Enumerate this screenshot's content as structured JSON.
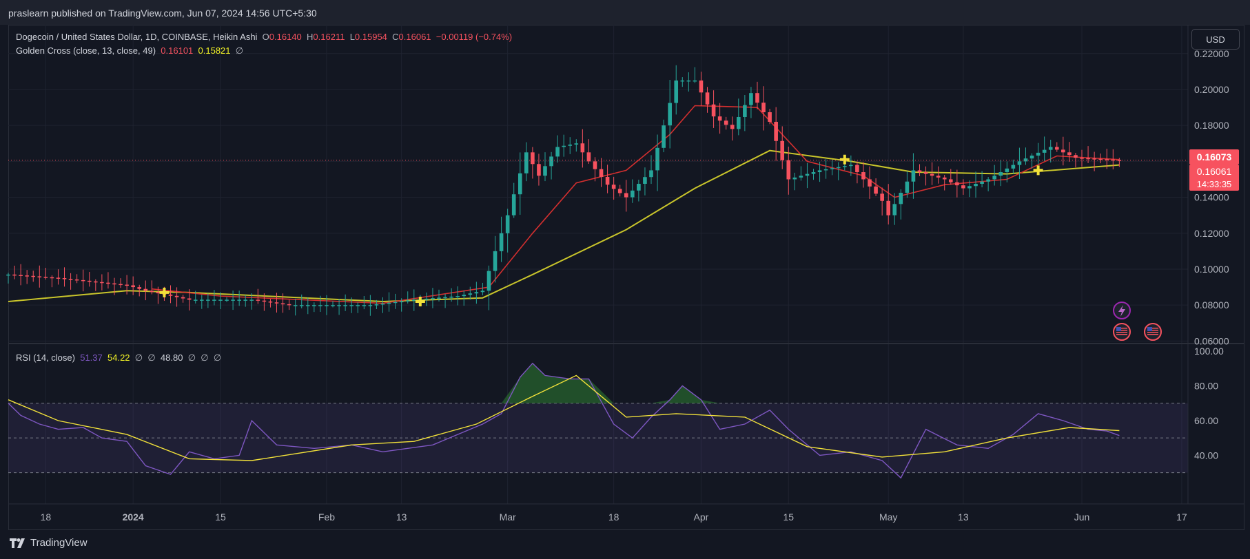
{
  "header": {
    "published": "praslearn published on TradingView.com, Jun 07, 2024 14:56 UTC+5:30"
  },
  "legend": {
    "title": "Dogecoin / United States Dollar, 1D, COINBASE, Heikin Ashi",
    "o_label": "O",
    "o": "0.16140",
    "h_label": "H",
    "h": "0.16211",
    "l_label": "L",
    "l": "0.15954",
    "c_label": "C",
    "c": "0.16061",
    "change": "−0.00119 (−0.74%)",
    "indicator": "Golden Cross (close, 13, close, 49)",
    "ind_v1": "0.16101",
    "ind_v2": "0.15821",
    "null_sym": "∅"
  },
  "rsi_legend": {
    "label": "RSI (14, close)",
    "v1": "51.37",
    "v2": "54.22",
    "v3": "48.80",
    "null_sym": "∅"
  },
  "currency_button": "USD",
  "price_badges": {
    "upper": "0.16073",
    "lower": "0.16061",
    "timer": "14:33:35"
  },
  "footer": {
    "brand": "TradingView"
  },
  "colors": {
    "up": "#26a69a",
    "down": "#f7525f",
    "ma_fast": "#d32f2f",
    "ma_slow": "#c9c52b",
    "rsi": "#7e57c2",
    "rsi_ma": "#f2e13a",
    "bg": "#131722"
  },
  "chart_data": [
    {
      "type": "candlestick",
      "title": "Dogecoin / United States Dollar, 1D, COINBASE, Heikin Ashi",
      "y_ticks": [
        "0.06000",
        "0.08000",
        "0.10000",
        "0.12000",
        "0.14000",
        "0.16000",
        "0.18000",
        "0.20000",
        "0.22000"
      ],
      "ylim": [
        0.059,
        0.236
      ],
      "x_ticks": [
        "18",
        "2024",
        "15",
        "Feb",
        "13",
        "Mar",
        "18",
        "Apr",
        "15",
        "May",
        "13",
        "Jun",
        "17"
      ],
      "xlim": [
        "2023-12-12",
        "2024-06-18"
      ],
      "last_price": 0.16061,
      "anchors": [
        [
          "2023-12-12",
          0.097
        ],
        [
          "2023-12-20",
          0.095
        ],
        [
          "2023-12-31",
          0.091
        ],
        [
          "2024-01-03",
          0.088
        ],
        [
          "2024-01-10",
          0.083
        ],
        [
          "2024-01-20",
          0.083
        ],
        [
          "2024-01-26",
          0.08
        ],
        [
          "2024-02-08",
          0.08
        ],
        [
          "2024-02-15",
          0.083
        ],
        [
          "2024-02-22",
          0.085
        ],
        [
          "2024-02-26",
          0.088
        ],
        [
          "2024-02-28",
          0.11
        ],
        [
          "2024-03-01",
          0.13
        ],
        [
          "2024-03-04",
          0.165
        ],
        [
          "2024-03-06",
          0.152
        ],
        [
          "2024-03-09",
          0.168
        ],
        [
          "2024-03-12",
          0.17
        ],
        [
          "2024-03-14",
          0.16
        ],
        [
          "2024-03-17",
          0.147
        ],
        [
          "2024-03-20",
          0.14
        ],
        [
          "2024-03-24",
          0.155
        ],
        [
          "2024-03-28",
          0.205
        ],
        [
          "2024-03-31",
          0.205
        ],
        [
          "2024-04-03",
          0.185
        ],
        [
          "2024-04-06",
          0.178
        ],
        [
          "2024-04-09",
          0.198
        ],
        [
          "2024-04-12",
          0.182
        ],
        [
          "2024-04-15",
          0.15
        ],
        [
          "2024-04-20",
          0.155
        ],
        [
          "2024-04-25",
          0.158
        ],
        [
          "2024-04-30",
          0.138
        ],
        [
          "2024-05-01",
          0.13
        ],
        [
          "2024-05-05",
          0.155
        ],
        [
          "2024-05-10",
          0.15
        ],
        [
          "2024-05-13",
          0.145
        ],
        [
          "2024-05-17",
          0.15
        ],
        [
          "2024-05-22",
          0.16
        ],
        [
          "2024-05-27",
          0.168
        ],
        [
          "2024-05-31",
          0.162
        ],
        [
          "2024-06-07",
          0.1606
        ]
      ],
      "series": [
        {
          "name": "Golden Cross fast MA (13)",
          "x": [
            "2024-01-04",
            "2024-01-15",
            "2024-02-10",
            "2024-02-27",
            "2024-03-05",
            "2024-03-12",
            "2024-03-20",
            "2024-03-27",
            "2024-03-31",
            "2024-04-10",
            "2024-04-18",
            "2024-04-27",
            "2024-05-02",
            "2024-05-10",
            "2024-05-20",
            "2024-05-28",
            "2024-06-07"
          ],
          "y": [
            0.089,
            0.085,
            0.081,
            0.09,
            0.12,
            0.148,
            0.155,
            0.175,
            0.191,
            0.19,
            0.16,
            0.152,
            0.14,
            0.147,
            0.15,
            0.163,
            0.161
          ]
        },
        {
          "name": "Golden Cross slow MA (49)",
          "x": [
            "2023-12-12",
            "2023-12-31",
            "2024-01-10",
            "2024-02-10",
            "2024-02-26",
            "2024-03-05",
            "2024-03-20",
            "2024-03-31",
            "2024-04-12",
            "2024-04-25",
            "2024-05-05",
            "2024-05-20",
            "2024-06-07"
          ],
          "y": [
            0.082,
            0.088,
            0.087,
            0.082,
            0.084,
            0.097,
            0.122,
            0.145,
            0.166,
            0.16,
            0.154,
            0.153,
            0.158
          ]
        }
      ],
      "golden_cross_markers": [
        [
          "2024-01-06",
          0.087
        ],
        [
          "2024-02-16",
          0.082
        ],
        [
          "2024-04-24",
          0.161
        ],
        [
          "2024-05-25",
          0.155
        ]
      ]
    },
    {
      "type": "line",
      "title": "RSI (14, close)",
      "y_ticks": [
        "40.00",
        "60.00",
        "80.00",
        "100.00"
      ],
      "ylim": [
        12,
        104
      ],
      "bands": [
        30,
        50,
        70
      ],
      "series": [
        {
          "name": "RSI",
          "x": [
            "2023-12-12",
            "2023-12-14",
            "2023-12-17",
            "2023-12-20",
            "2023-12-24",
            "2023-12-27",
            "2023-12-31",
            "2024-01-03",
            "2024-01-07",
            "2024-01-10",
            "2024-01-14",
            "2024-01-18",
            "2024-01-20",
            "2024-01-24",
            "2024-01-30",
            "2024-02-05",
            "2024-02-10",
            "2024-02-14",
            "2024-02-18",
            "2024-02-22",
            "2024-02-26",
            "2024-02-29",
            "2024-03-03",
            "2024-03-05",
            "2024-03-07",
            "2024-03-11",
            "2024-03-14",
            "2024-03-18",
            "2024-03-21",
            "2024-03-24",
            "2024-03-27",
            "2024-03-29",
            "2024-04-01",
            "2024-04-04",
            "2024-04-08",
            "2024-04-12",
            "2024-04-15",
            "2024-04-20",
            "2024-04-25",
            "2024-04-30",
            "2024-05-03",
            "2024-05-07",
            "2024-05-12",
            "2024-05-17",
            "2024-05-21",
            "2024-05-25",
            "2024-05-29",
            "2024-06-02",
            "2024-06-05",
            "2024-06-07"
          ],
          "y": [
            70,
            63,
            58,
            55,
            56,
            50,
            48,
            34,
            29,
            42,
            38,
            40,
            60,
            46,
            44,
            46,
            42,
            44,
            46,
            52,
            58,
            64,
            85,
            93,
            86,
            84,
            84,
            58,
            50,
            62,
            72,
            80,
            72,
            55,
            58,
            66,
            55,
            40,
            42,
            37,
            27,
            55,
            46,
            44,
            52,
            64,
            60,
            55,
            54,
            51.37
          ]
        },
        {
          "name": "RSI-based MA",
          "x": [
            "2023-12-12",
            "2023-12-20",
            "2023-12-31",
            "2024-01-10",
            "2024-01-20",
            "2024-02-05",
            "2024-02-15",
            "2024-02-25",
            "2024-03-05",
            "2024-03-12",
            "2024-03-20",
            "2024-03-28",
            "2024-04-08",
            "2024-04-18",
            "2024-04-30",
            "2024-05-10",
            "2024-05-20",
            "2024-05-30",
            "2024-06-07"
          ],
          "y": [
            72,
            60,
            52,
            38,
            37,
            46,
            48,
            58,
            74,
            86,
            62,
            64,
            62,
            45,
            39,
            42,
            50,
            56,
            54.22
          ]
        }
      ]
    }
  ]
}
